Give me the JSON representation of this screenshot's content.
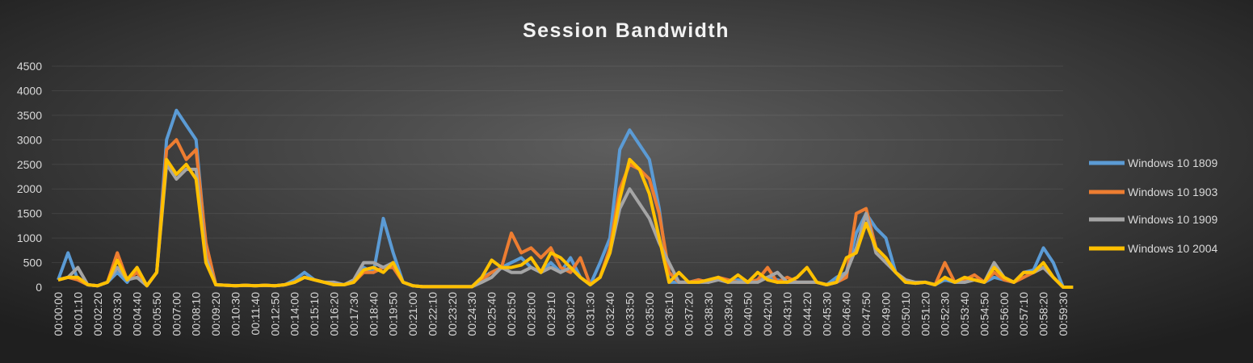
{
  "chart_data": {
    "type": "line",
    "title": "Session Bandwidth",
    "categories": [
      "00:00:00",
      null,
      "00:01:10",
      null,
      "00:02:20",
      null,
      "00:03:30",
      null,
      "00:04:40",
      null,
      "00:05:50",
      null,
      "00:07:00",
      null,
      "00:08:10",
      null,
      "00:09:20",
      null,
      "00:10:30",
      null,
      "00:11:40",
      null,
      "00:12:50",
      null,
      "00:14:00",
      null,
      "00:15:10",
      null,
      "00:16:20",
      null,
      "00:17:30",
      null,
      "00:18:40",
      null,
      "00:19:50",
      null,
      "00:21:00",
      null,
      "00:22:10",
      null,
      "00:23:20",
      null,
      "00:24:30",
      null,
      "00:25:40",
      null,
      "00:26:50",
      null,
      "00:28:00",
      null,
      "00:29:10",
      null,
      "00:30:20",
      null,
      "00:31:30",
      null,
      "00:32:40",
      null,
      "00:33:50",
      null,
      "00:35:00",
      null,
      "00:36:10",
      null,
      "00:37:20",
      null,
      "00:38:30",
      null,
      "00:39:40",
      null,
      "00:40:50",
      null,
      "00:42:00",
      null,
      "00:43:10",
      null,
      "00:44:20",
      null,
      "00:45:30",
      null,
      "00:46:40",
      null,
      "00:47:50",
      null,
      "00:49:00",
      null,
      "00:50:10",
      null,
      "00:51:20",
      null,
      "00:52:30",
      null,
      "00:53:40",
      null,
      "00:54:50",
      null,
      "00:56:00",
      null,
      "00:57:10",
      null,
      "00:58:20",
      null,
      "00:59:30",
      null
    ],
    "series": [
      {
        "name": "Windows 10 1809",
        "color": "#5b9bd5",
        "values": [
          150,
          700,
          150,
          50,
          30,
          100,
          300,
          100,
          400,
          30,
          300,
          3000,
          3600,
          3300,
          3000,
          800,
          50,
          40,
          30,
          40,
          30,
          40,
          30,
          50,
          150,
          300,
          150,
          100,
          50,
          50,
          100,
          400,
          300,
          1400,
          700,
          100,
          30,
          10,
          10,
          10,
          10,
          10,
          10,
          200,
          300,
          400,
          500,
          600,
          400,
          300,
          500,
          300,
          600,
          200,
          50,
          500,
          1000,
          2800,
          3200,
          2900,
          2600,
          1600,
          100,
          100,
          100,
          150,
          100,
          200,
          100,
          150,
          100,
          150,
          200,
          150,
          100,
          100,
          100,
          100,
          50,
          200,
          300,
          1100,
          1500,
          1200,
          1000,
          300,
          100,
          80,
          100,
          50,
          150,
          100,
          100,
          150,
          100,
          200,
          150,
          100,
          300,
          350,
          800,
          500,
          0,
          0
        ]
      },
      {
        "name": "Windows 10 1903",
        "color": "#ed7d31",
        "values": [
          150,
          200,
          150,
          50,
          30,
          100,
          700,
          150,
          300,
          30,
          300,
          2800,
          3000,
          2600,
          2800,
          900,
          50,
          40,
          30,
          40,
          30,
          40,
          30,
          50,
          100,
          200,
          150,
          100,
          50,
          50,
          100,
          300,
          300,
          400,
          400,
          100,
          30,
          10,
          10,
          10,
          10,
          10,
          10,
          150,
          300,
          400,
          1100,
          700,
          800,
          600,
          800,
          400,
          300,
          600,
          50,
          200,
          800,
          2000,
          2500,
          2400,
          2200,
          1500,
          300,
          100,
          100,
          150,
          100,
          200,
          150,
          100,
          100,
          150,
          400,
          100,
          200,
          100,
          100,
          100,
          50,
          100,
          200,
          1500,
          1600,
          800,
          600,
          300,
          150,
          80,
          100,
          50,
          500,
          100,
          150,
          250,
          100,
          300,
          150,
          100,
          200,
          300,
          400,
          200,
          0,
          0
        ]
      },
      {
        "name": "Windows 10 1909",
        "color": "#a5a5a5",
        "values": [
          150,
          200,
          400,
          50,
          30,
          100,
          400,
          150,
          200,
          30,
          300,
          2500,
          2200,
          2400,
          2400,
          600,
          50,
          40,
          30,
          40,
          30,
          40,
          30,
          50,
          100,
          200,
          150,
          100,
          100,
          50,
          150,
          500,
          500,
          400,
          500,
          100,
          30,
          10,
          10,
          10,
          10,
          10,
          10,
          100,
          200,
          400,
          300,
          300,
          400,
          300,
          400,
          300,
          400,
          200,
          50,
          200,
          700,
          1600,
          2000,
          1700,
          1400,
          900,
          500,
          100,
          100,
          100,
          100,
          150,
          100,
          100,
          100,
          100,
          200,
          300,
          100,
          100,
          100,
          100,
          50,
          100,
          300,
          800,
          1500,
          700,
          500,
          300,
          150,
          100,
          100,
          50,
          200,
          100,
          100,
          150,
          100,
          500,
          200,
          100,
          300,
          300,
          400,
          200,
          0,
          0
        ]
      },
      {
        "name": "Windows 10 2004",
        "color": "#ffc000",
        "values": [
          150,
          200,
          200,
          50,
          30,
          100,
          550,
          150,
          400,
          30,
          300,
          2600,
          2300,
          2500,
          2200,
          500,
          50,
          40,
          30,
          40,
          30,
          40,
          30,
          50,
          100,
          200,
          150,
          100,
          50,
          50,
          100,
          350,
          400,
          300,
          500,
          100,
          30,
          10,
          10,
          10,
          10,
          10,
          10,
          200,
          550,
          400,
          400,
          450,
          600,
          300,
          700,
          600,
          400,
          200,
          50,
          200,
          700,
          1800,
          2600,
          2400,
          1900,
          1000,
          100,
          300,
          100,
          100,
          150,
          200,
          100,
          250,
          100,
          300,
          150,
          100,
          100,
          200,
          400,
          100,
          50,
          100,
          600,
          700,
          1300,
          800,
          600,
          300,
          100,
          80,
          100,
          50,
          200,
          100,
          200,
          150,
          100,
          400,
          200,
          100,
          300,
          300,
          500,
          200,
          0,
          0
        ]
      }
    ],
    "ylim": [
      0,
      4500
    ],
    "yticks": [
      0,
      500,
      1000,
      1500,
      2000,
      2500,
      3000,
      3500,
      4000,
      4500
    ],
    "grid": true,
    "legend": "right"
  }
}
